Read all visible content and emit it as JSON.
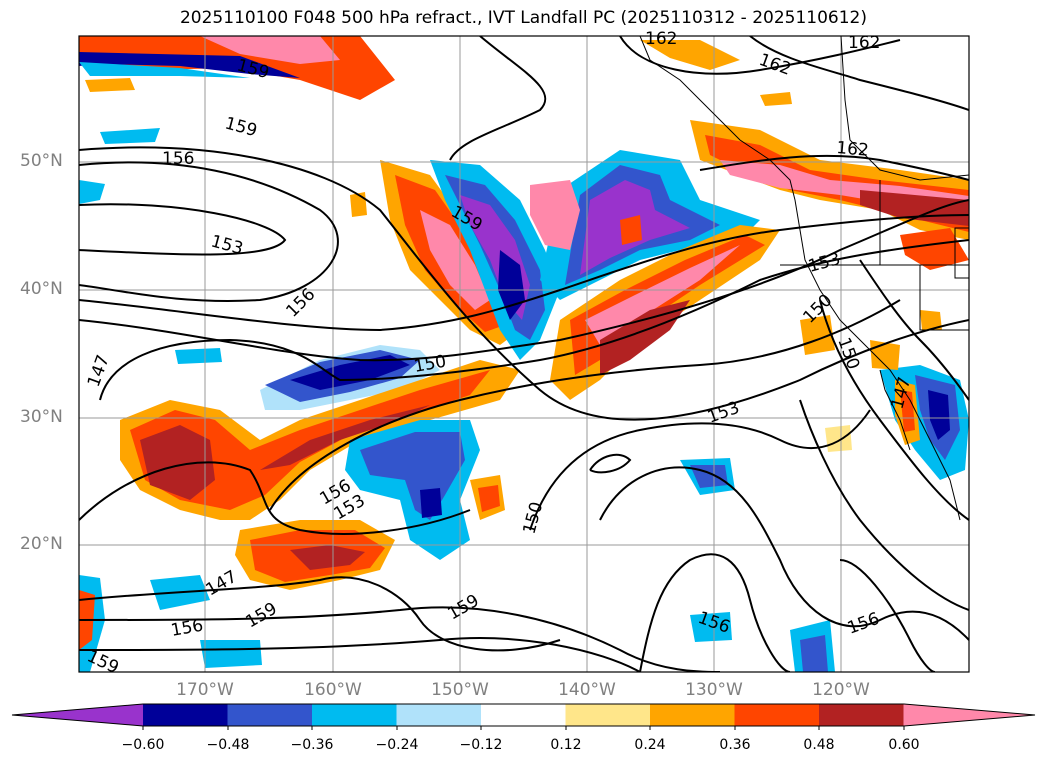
{
  "title": "2025110100 F048 500 hPa refract., IVT Landfall PC (2025110312 - 2025110612)",
  "map": {
    "lat_labels": [
      "50°N",
      "40°N",
      "30°N",
      "20°N"
    ],
    "lon_labels": [
      "170°W",
      "160°W",
      "150°W",
      "140°W",
      "130°W",
      "120°W"
    ],
    "contour_labels": [
      "162",
      "162",
      "159",
      "159",
      "156",
      "153",
      "162",
      "162",
      "159",
      "153",
      "150",
      "156",
      "150",
      "150",
      "147",
      "153",
      "156",
      "153",
      "150",
      "159",
      "147",
      "156",
      "159",
      "156",
      "156",
      "159",
      "147"
    ]
  },
  "colorbar": {
    "ticks": [
      "−0.60",
      "−0.48",
      "−0.36",
      "−0.24",
      "−0.12",
      "0.12",
      "0.24",
      "0.36",
      "0.48",
      "0.60"
    ],
    "colors": [
      "#9933cc",
      "#000099",
      "#3355cc",
      "#00bbf0",
      "#b0e2fa",
      "#ffffff",
      "#ffe68a",
      "#ffa500",
      "#ff4500",
      "#b22222",
      "#ff88aa"
    ]
  },
  "legend_colors": {
    "purple": "#9933cc",
    "navy": "#000099",
    "blue": "#3355cc",
    "cyan": "#00bbf0",
    "lightblue": "#b0e2fa",
    "yellow": "#ffe68a",
    "orange": "#ffa500",
    "redorange": "#ff4500",
    "darkred": "#b22222",
    "pink": "#ff88aa"
  }
}
